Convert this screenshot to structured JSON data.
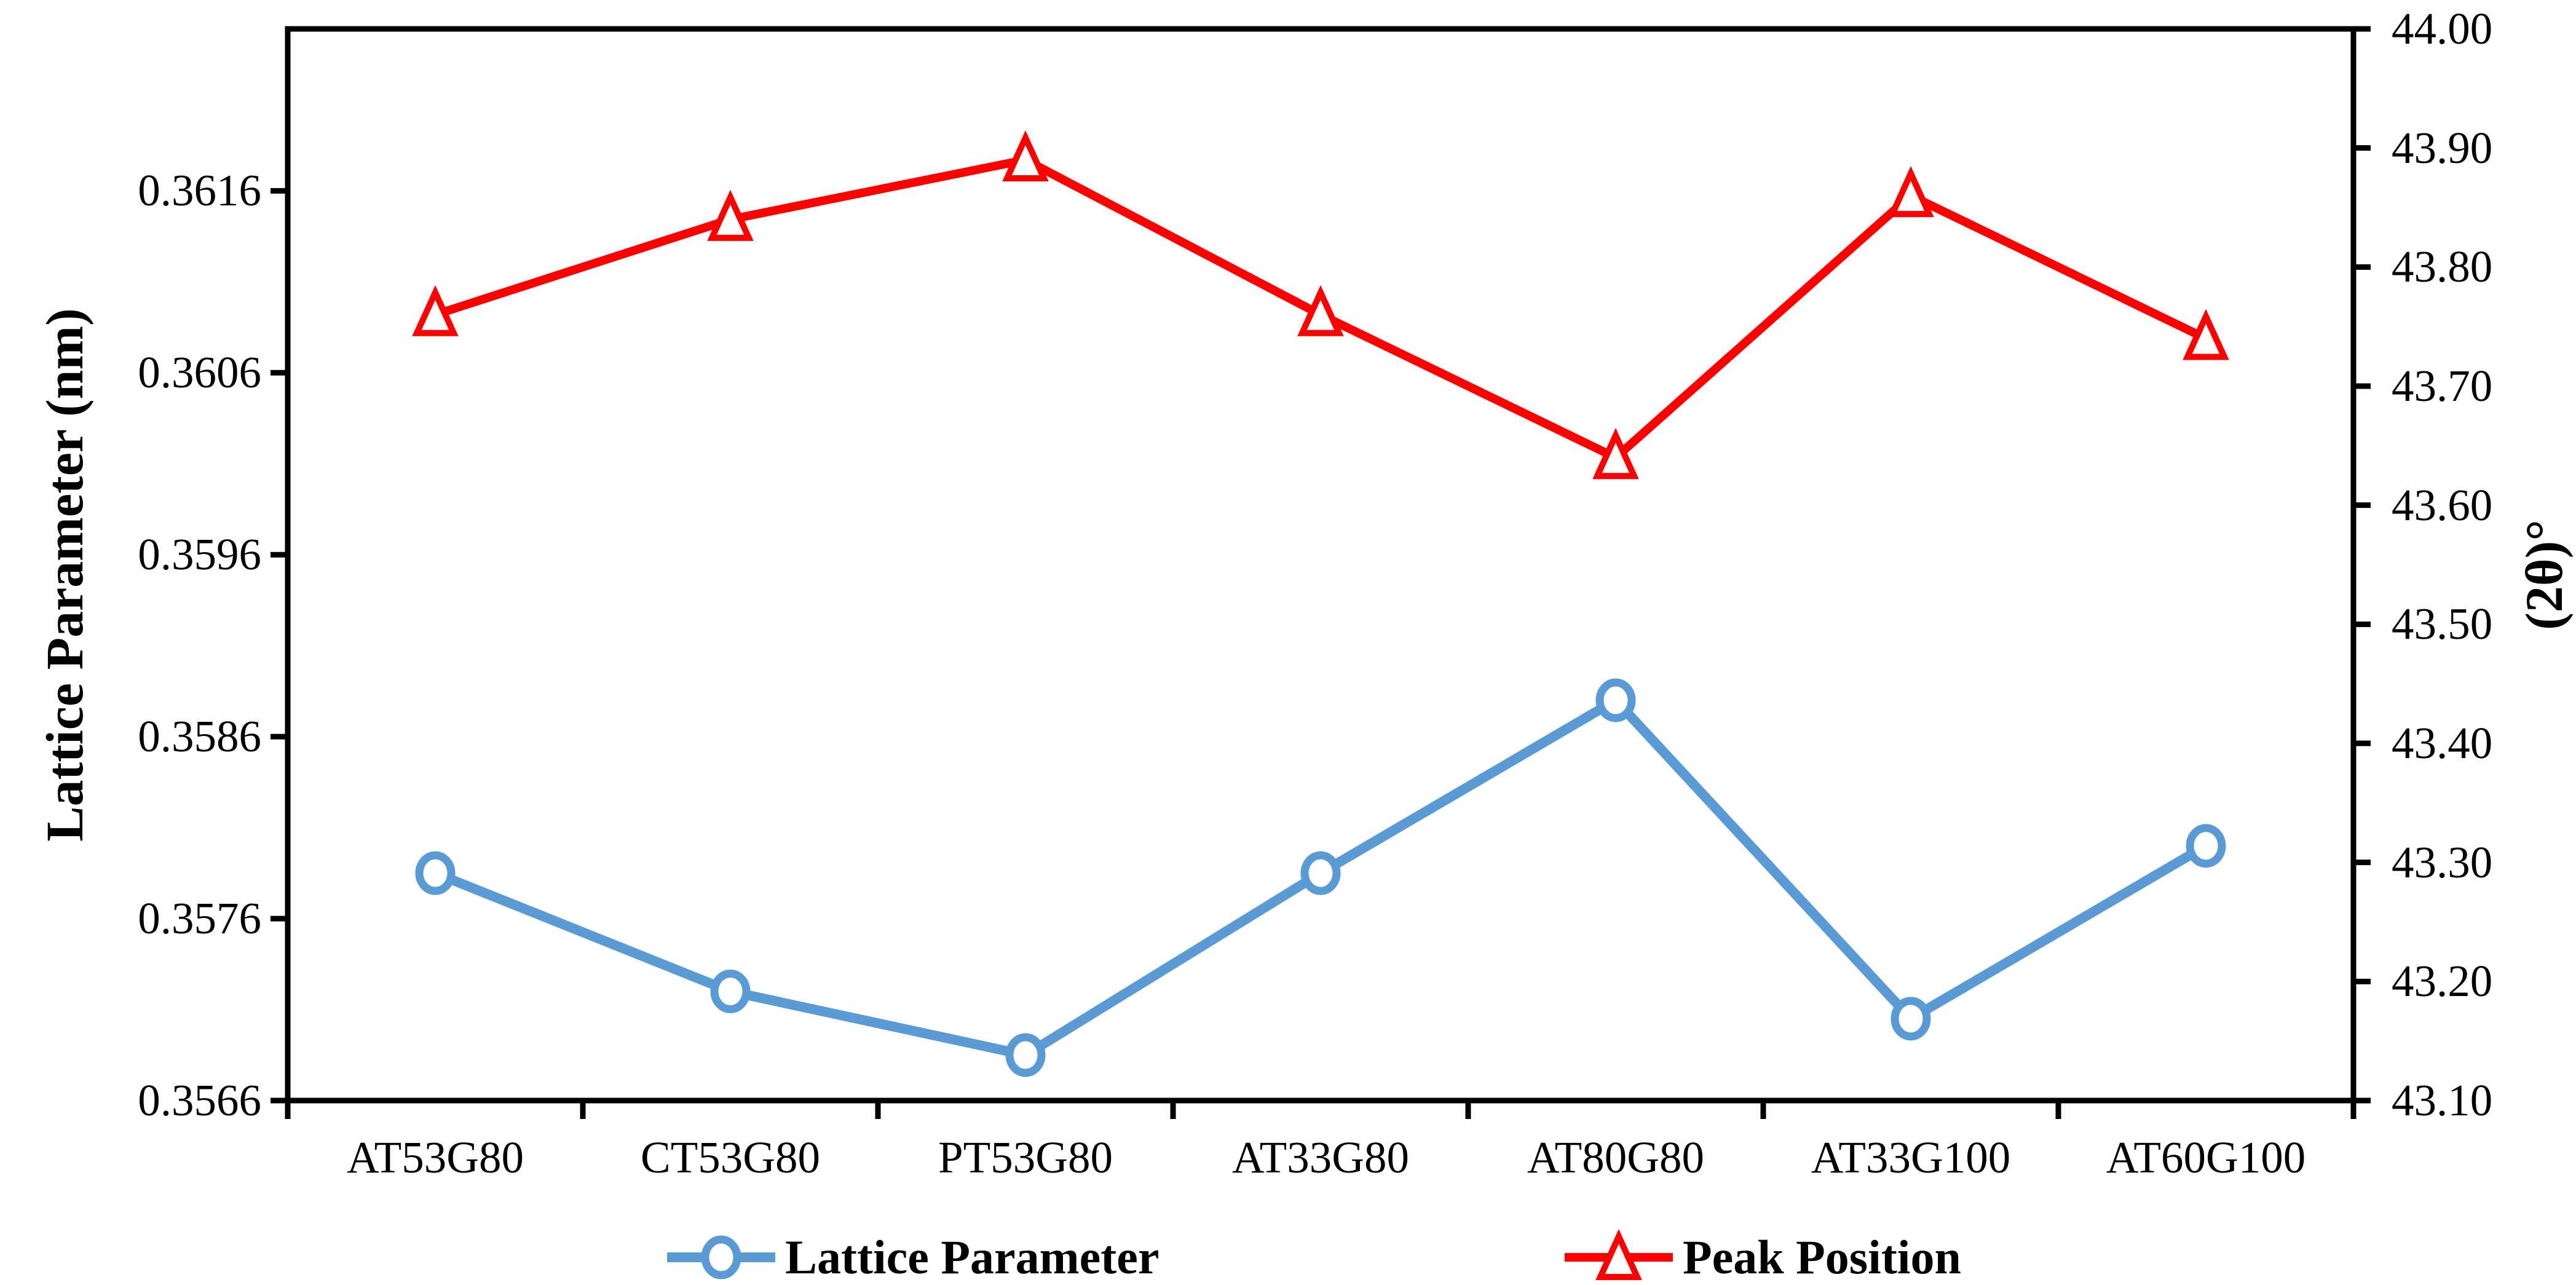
{
  "chart_data": {
    "type": "line",
    "title": "",
    "categories": [
      "AT53G80",
      "CT53G80",
      "PT53G80",
      "AT33G80",
      "AT80G80",
      "AT33G100",
      "AT60G100"
    ],
    "series": [
      {
        "name": "Lattice Parameter",
        "axis": "left",
        "marker": "circle",
        "color": "#5B9BD5",
        "values": [
          0.35785,
          0.3572,
          0.35685,
          0.35785,
          0.3588,
          0.35705,
          0.358
        ]
      },
      {
        "name": "Peak Position",
        "axis": "right",
        "marker": "triangle",
        "color": "#FF0000",
        "values": [
          43.76,
          43.84,
          43.89,
          43.76,
          43.64,
          43.86,
          43.74
        ]
      }
    ],
    "left_axis": {
      "title": "Lattice Parameter (nm)",
      "min": 0.3566,
      "max": 0.36249,
      "tick_labels": [
        "0.3566",
        "0.3576",
        "0.3586",
        "0.3596",
        "0.3606",
        "0.3616"
      ]
    },
    "right_axis": {
      "title": "(2θ)°",
      "min": 43.1,
      "max": 44.0,
      "tick_labels": [
        "43.10",
        "43.20",
        "43.30",
        "43.40",
        "43.50",
        "43.60",
        "43.70",
        "43.80",
        "43.90",
        "44.00"
      ]
    },
    "legend_position": "bottom",
    "grid": false,
    "frame_color": "#000000",
    "background": "#FFFFFF"
  }
}
